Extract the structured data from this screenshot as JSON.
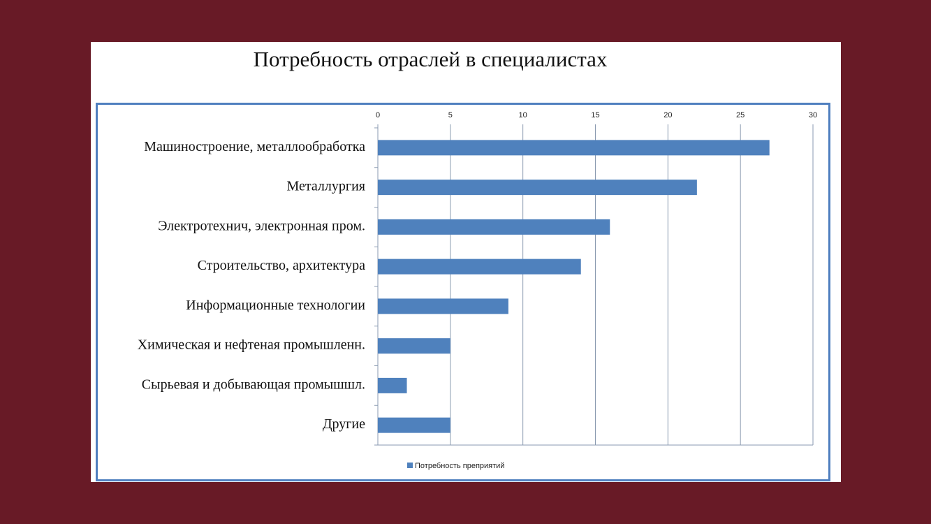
{
  "chart_data": {
    "type": "bar",
    "orientation": "horizontal",
    "title": "Потребность отраслей в специалистах",
    "categories": [
      "Машиностроение, металлообработка",
      "Металлургия",
      "Электротехнич, электронная пром.",
      "Строительство, архитектура",
      "Информационные технологии",
      "Химическая и нефтеная промышленн.",
      "Сырьевая и добывающая промышшл.",
      "Другие"
    ],
    "series": [
      {
        "name": "Потребность преприятий",
        "color": "#4f81bd",
        "values": [
          27,
          22,
          16,
          14,
          9,
          5,
          2,
          5
        ]
      }
    ],
    "xlim": [
      0,
      30
    ],
    "xticks": [
      0,
      5,
      10,
      15,
      20,
      25,
      30
    ],
    "grid": true,
    "legend": "bottom"
  }
}
